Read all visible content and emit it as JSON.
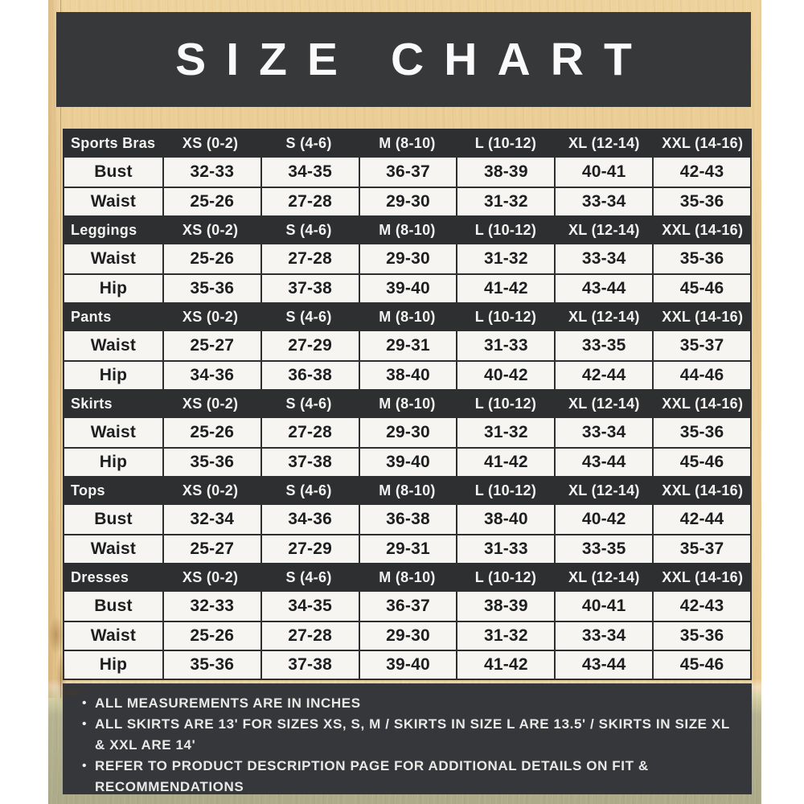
{
  "title_banner": {
    "text": "SIZE CHART"
  },
  "chart_data": {
    "type": "table",
    "title": "SIZE CHART",
    "columns": [
      "XS (0-2)",
      "S (4-6)",
      "M (8-10)",
      "L (10-12)",
      "XL (12-14)",
      "XXL (14-16)"
    ],
    "sections": [
      {
        "name": "Sports Bras",
        "rows": [
          {
            "label": "Bust",
            "values": [
              "32-33",
              "34-35",
              "36-37",
              "38-39",
              "40-41",
              "42-43"
            ]
          },
          {
            "label": "Waist",
            "values": [
              "25-26",
              "27-28",
              "29-30",
              "31-32",
              "33-34",
              "35-36"
            ]
          }
        ]
      },
      {
        "name": "Leggings",
        "rows": [
          {
            "label": "Waist",
            "values": [
              "25-26",
              "27-28",
              "29-30",
              "31-32",
              "33-34",
              "35-36"
            ]
          },
          {
            "label": "Hip",
            "values": [
              "35-36",
              "37-38",
              "39-40",
              "41-42",
              "43-44",
              "45-46"
            ]
          }
        ]
      },
      {
        "name": "Pants",
        "rows": [
          {
            "label": "Waist",
            "values": [
              "25-27",
              "27-29",
              "29-31",
              "31-33",
              "33-35",
              "35-37"
            ]
          },
          {
            "label": "Hip",
            "values": [
              "34-36",
              "36-38",
              "38-40",
              "40-42",
              "42-44",
              "44-46"
            ]
          }
        ]
      },
      {
        "name": "Skirts",
        "rows": [
          {
            "label": "Waist",
            "values": [
              "25-26",
              "27-28",
              "29-30",
              "31-32",
              "33-34",
              "35-36"
            ]
          },
          {
            "label": "Hip",
            "values": [
              "35-36",
              "37-38",
              "39-40",
              "41-42",
              "43-44",
              "45-46"
            ]
          }
        ]
      },
      {
        "name": "Tops",
        "rows": [
          {
            "label": "Bust",
            "values": [
              "32-34",
              "34-36",
              "36-38",
              "38-40",
              "40-42",
              "42-44"
            ]
          },
          {
            "label": "Waist",
            "values": [
              "25-27",
              "27-29",
              "29-31",
              "31-33",
              "33-35",
              "35-37"
            ]
          }
        ]
      },
      {
        "name": "Dresses",
        "rows": [
          {
            "label": "Bust",
            "values": [
              "32-33",
              "34-35",
              "36-37",
              "38-39",
              "40-41",
              "42-43"
            ]
          },
          {
            "label": "Waist",
            "values": [
              "25-26",
              "27-28",
              "29-30",
              "31-32",
              "33-34",
              "35-36"
            ]
          },
          {
            "label": "Hip",
            "values": [
              "35-36",
              "37-38",
              "39-40",
              "41-42",
              "43-44",
              "45-46"
            ]
          }
        ]
      }
    ]
  },
  "notes": [
    {
      "bullet": "•",
      "text": "ALL MEASUREMENTS ARE IN INCHES"
    },
    {
      "bullet": "•",
      "text": "ALL SKIRTS ARE 13' FOR SIZES XS, S, M / SKIRTS IN SIZE L ARE 13.5' / SKIRTS IN SIZE XL & XXL ARE 14'"
    },
    {
      "bullet": "•",
      "text": "REFER TO PRODUCT DESCRIPTION PAGE FOR ADDITIONAL DETAILS ON FIT & RECOMMENDATIONS"
    }
  ],
  "colors": {
    "banner_dark": "#36383a",
    "header_row_dark": "#2d2f31",
    "data_row_bg": "#f6f5f2",
    "data_text": "#1d1e20",
    "wood_tan": "#e8c98f",
    "tabletop_green": "#abaa89",
    "page_margin_white": "#ffffff"
  }
}
